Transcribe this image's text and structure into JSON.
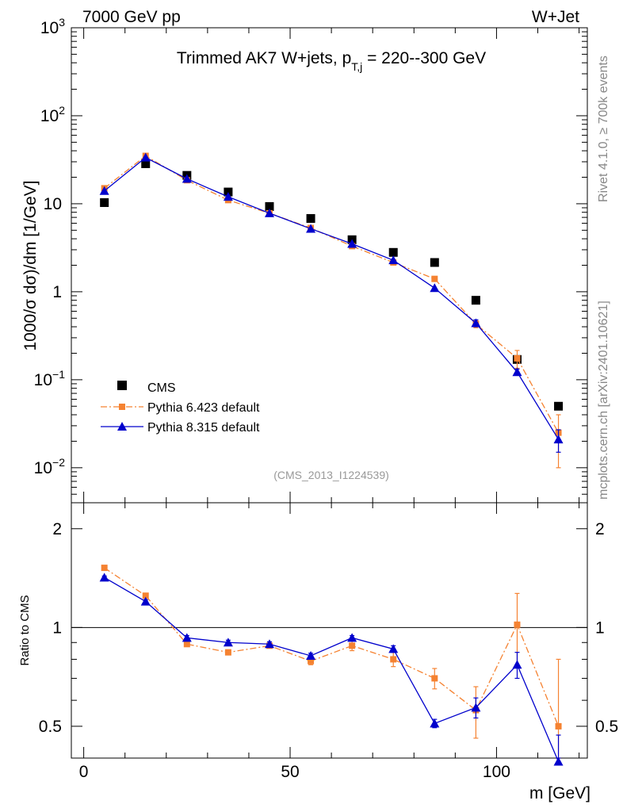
{
  "header": {
    "left_label": "7000 GeV pp",
    "right_label": "W+Jet"
  },
  "side_text": {
    "rivet": "Rivet 4.1.0, ≥ 700k events",
    "mcplots": "mcplots.cern.ch [arXiv:2401.10621]"
  },
  "chart_data": [
    {
      "type": "scatter",
      "panel": "main",
      "title": "Trimmed AK7 W+jets, p_T,j = 220--300 GeV",
      "title_main": "Trimmed AK7 W+jets, p",
      "title_sub": "T,j",
      "title_tail": " = 220--300 GeV",
      "analysis_id": "(CMS_2013_I1224539)",
      "ylabel": "1000/σ  dσ)/dm [1/GeV]",
      "yscale": "log",
      "ylim": [
        0.004,
        1000
      ],
      "xlim": [
        -3,
        122
      ],
      "x": [
        5,
        15,
        25,
        35,
        45,
        55,
        65,
        75,
        85,
        95,
        105,
        115
      ],
      "yticks": [
        {
          "value": 1000,
          "label_base": "10",
          "label_exp": "3"
        },
        {
          "value": 100,
          "label_base": "10",
          "label_exp": "2"
        },
        {
          "value": 10,
          "label_base": "10",
          "label_exp": ""
        },
        {
          "value": 1,
          "label_base": "1",
          "label_exp": ""
        },
        {
          "value": 0.1,
          "label_base": "10",
          "label_exp": "−1"
        },
        {
          "value": 0.01,
          "label_base": "10",
          "label_exp": "−2"
        }
      ],
      "series": [
        {
          "name": "CMS",
          "color": "#000000",
          "marker": "square",
          "line": "none",
          "values": [
            10.3,
            28.5,
            21.0,
            13.6,
            9.3,
            6.8,
            3.9,
            2.8,
            2.15,
            0.8,
            0.17,
            0.05
          ]
        },
        {
          "name": "Pythia 6.423 default",
          "color": "#f58231",
          "marker": "square",
          "line": "dashdot",
          "values": [
            15.0,
            35.0,
            18.5,
            11.0,
            7.8,
            5.3,
            3.3,
            2.15,
            1.4,
            0.43,
            0.175,
            0.025
          ],
          "err": [
            0,
            0,
            0,
            0,
            0,
            0,
            0,
            0,
            0,
            0.04,
            0.04,
            0.015
          ]
        },
        {
          "name": "Pythia 8.315 default",
          "color": "#0000cc",
          "marker": "triangle",
          "line": "solid",
          "values": [
            14.0,
            33.5,
            19.2,
            12.0,
            7.8,
            5.2,
            3.5,
            2.28,
            1.1,
            0.44,
            0.122,
            0.021
          ],
          "err": [
            0,
            0,
            0,
            0,
            0,
            0,
            0,
            0,
            0,
            0.04,
            0.01,
            0.006
          ]
        }
      ]
    },
    {
      "type": "scatter",
      "panel": "ratio",
      "ylabel": "Ratio to CMS",
      "xlabel": "m [GeV]",
      "yscale": "log",
      "ylim": [
        0.4,
        2.4
      ],
      "xlim": [
        -3,
        122
      ],
      "reference_line": 1,
      "x": [
        5,
        15,
        25,
        35,
        45,
        55,
        65,
        75,
        85,
        95,
        105,
        115
      ],
      "yticks": [
        2,
        1,
        0.5
      ],
      "ytick_labels": [
        "2",
        "1",
        "0.5"
      ],
      "xticks": [
        0,
        50,
        100
      ],
      "xtick_labels": [
        "0",
        "50",
        "100"
      ],
      "series": [
        {
          "name": "Pythia 6.423 default",
          "color": "#f58231",
          "values": [
            1.52,
            1.25,
            0.89,
            0.84,
            0.88,
            0.79,
            0.88,
            0.8,
            0.7,
            0.56,
            1.02,
            0.5
          ],
          "err": [
            0.02,
            0.02,
            0.015,
            0.015,
            0.015,
            0.02,
            0.03,
            0.04,
            0.05,
            0.1,
            0.25,
            0.3
          ]
        },
        {
          "name": "Pythia 8.315 default",
          "color": "#0000cc",
          "values": [
            1.42,
            1.2,
            0.93,
            0.9,
            0.89,
            0.82,
            0.93,
            0.86,
            0.51,
            0.57,
            0.77,
            0.39
          ],
          "err": [
            0.015,
            0.015,
            0.015,
            0.015,
            0.015,
            0.015,
            0.015,
            0.02,
            0.015,
            0.04,
            0.07,
            0.08
          ]
        }
      ]
    }
  ]
}
